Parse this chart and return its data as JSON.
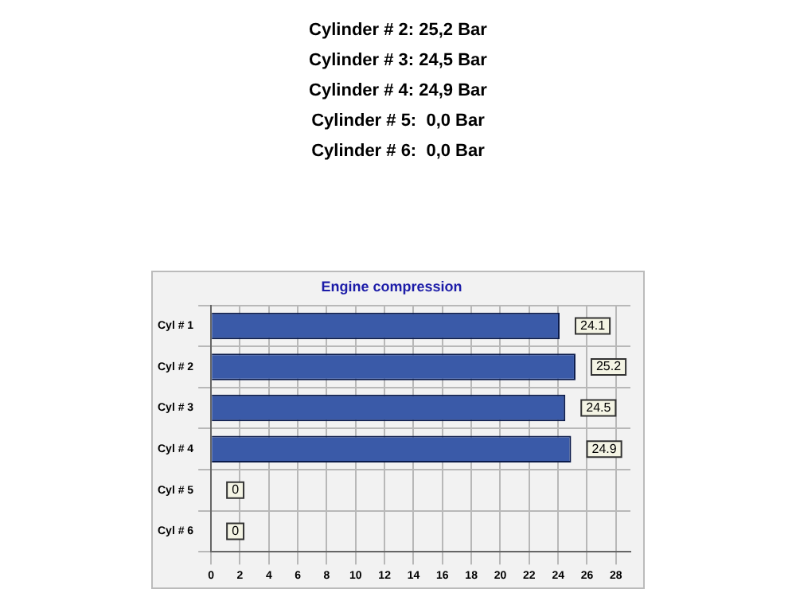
{
  "chart_data": {
    "type": "bar",
    "orientation": "horizontal",
    "title": "Engine compression",
    "annotations": [
      "Cylinder # 2: 25,2 Bar",
      "Cylinder # 3: 24,5 Bar",
      "Cylinder # 4: 24,9 Bar",
      "Cylinder # 5:  0,0 Bar",
      "Cylinder # 6:  0,0 Bar"
    ],
    "categories": [
      "Cyl # 1",
      "Cyl # 2",
      "Cyl # 3",
      "Cyl # 4",
      "Cyl # 5",
      "Cyl # 6"
    ],
    "values": [
      24.1,
      25.2,
      24.5,
      24.9,
      0,
      0
    ],
    "color": "#3a5aa8",
    "xlim": [
      0,
      29
    ],
    "xticks": [
      0,
      2,
      4,
      6,
      8,
      10,
      12,
      14,
      16,
      18,
      20,
      22,
      24,
      26,
      28
    ],
    "grid": true,
    "data_labels": true
  }
}
